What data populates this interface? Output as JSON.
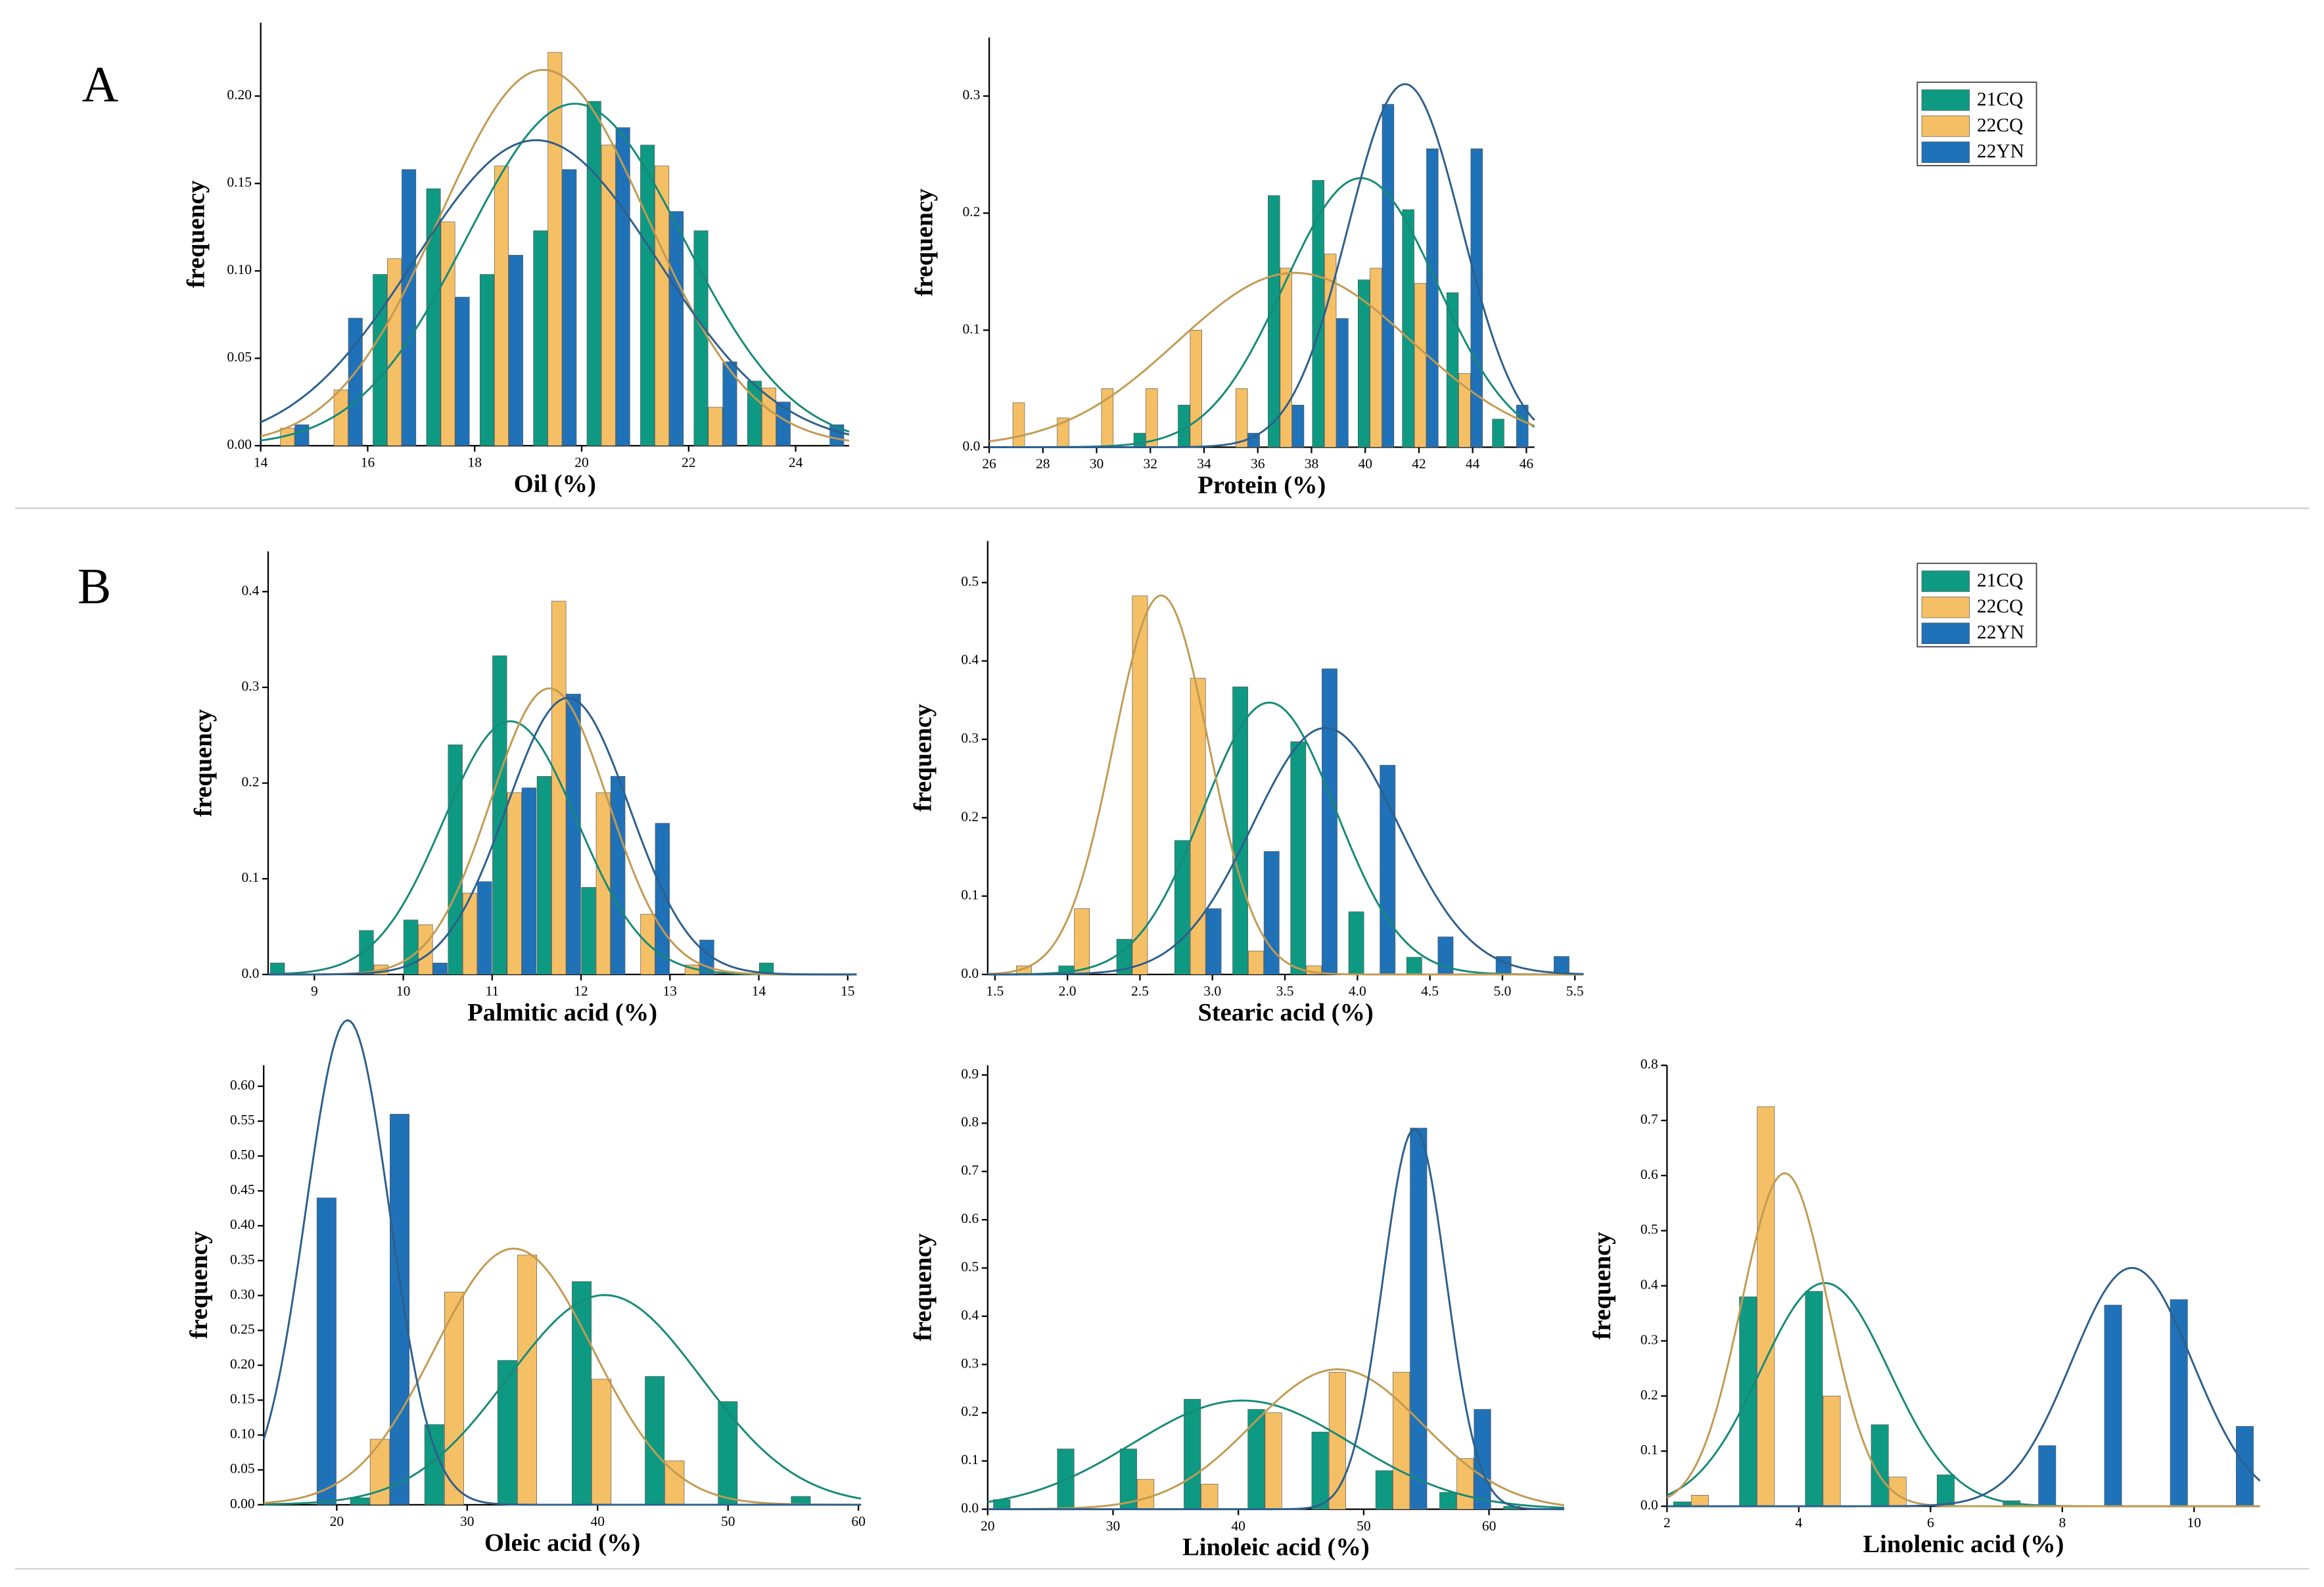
{
  "chart_data": [
    {
      "type": "bar",
      "panel_label": "A",
      "xlabel": "Oil  (%)",
      "ylabel": "frequency",
      "x": [
        14.5,
        15.5,
        16.5,
        17.5,
        18.5,
        19.5,
        20.5,
        21.5,
        22.5,
        23.5,
        24.5
      ],
      "series": [
        {
          "name": "21CQ",
          "color": "#0e9a82",
          "curve_color": "#168a78",
          "values": [
            null,
            null,
            0.098,
            0.147,
            0.098,
            0.123,
            0.197,
            0.172,
            0.123,
            0.037,
            null
          ]
        },
        {
          "name": "22CQ",
          "color": "#f5c065",
          "curve_color": "#c29a52",
          "values": [
            0.01,
            0.032,
            0.107,
            0.128,
            0.16,
            0.225,
            0.172,
            0.16,
            0.022,
            0.033,
            null
          ]
        },
        {
          "name": "22YN",
          "color": "#1f72b8",
          "curve_color": "#2d5f8c",
          "values": [
            0.012,
            0.073,
            0.158,
            0.085,
            0.109,
            0.158,
            0.182,
            0.134,
            0.048,
            0.025,
            0.012
          ]
        }
      ],
      "xlim": [
        14,
        25
      ],
      "xticks": [
        14,
        16,
        18,
        20,
        22,
        24
      ],
      "ylim": [
        0,
        0.242
      ],
      "yticks": [
        {
          "value": 0,
          "label": "0.00"
        },
        0.05,
        {
          "value": 0.1,
          "label": "0.10"
        },
        0.15,
        {
          "value": 0.2,
          "label": "0.20"
        }
      ]
    },
    {
      "type": "bar",
      "xlabel": "Protein (%)",
      "ylabel": "frequency",
      "legend": "right",
      "x": [
        27.1,
        28.75,
        30.4,
        32.05,
        33.7,
        35.4,
        37.05,
        38.7,
        40.4,
        42.05,
        43.7,
        45.4
      ],
      "series": [
        {
          "name": "21CQ",
          "color": "#0e9a82",
          "curve_color": "#168a78",
          "values": [
            null,
            null,
            null,
            0.012,
            0.036,
            null,
            0.215,
            0.228,
            0.143,
            0.203,
            0.132,
            0.024
          ]
        },
        {
          "name": "22CQ",
          "color": "#f5c065",
          "curve_color": "#c29a52",
          "values": [
            0.038,
            0.025,
            0.05,
            0.05,
            0.1,
            0.05,
            0.153,
            0.165,
            0.153,
            0.14,
            0.063,
            null
          ]
        },
        {
          "name": "22YN",
          "color": "#1f72b8",
          "curve_color": "#2d5f8c",
          "values": [
            null,
            null,
            null,
            null,
            null,
            0.012,
            0.036,
            0.11,
            0.293,
            0.255,
            0.255,
            0.036
          ]
        }
      ],
      "xlim": [
        26,
        46.3
      ],
      "xticks": [
        26,
        28,
        30,
        32,
        34,
        36,
        38,
        40,
        42,
        44,
        46
      ],
      "ylim": [
        0,
        0.35
      ],
      "yticks": [
        {
          "value": 0,
          "label": "0.0"
        },
        0.1,
        0.2,
        0.3
      ]
    },
    {
      "type": "bar",
      "panel_label": "B",
      "xlabel": "Palmitic acid (%)",
      "ylabel": "frequency",
      "x": [
        8.75,
        9.75,
        10.25,
        10.75,
        11.25,
        11.75,
        12.25,
        12.75,
        13.25,
        14.25
      ],
      "series": [
        {
          "name": "21CQ",
          "color": "#0e9a82",
          "curve_color": "#168a78",
          "values": [
            0.012,
            0.046,
            0.057,
            0.24,
            0.333,
            0.207,
            0.091,
            null,
            null,
            0.012
          ]
        },
        {
          "name": "22CQ",
          "color": "#f5c065",
          "curve_color": "#c29a52",
          "values": [
            null,
            0.01,
            0.052,
            0.085,
            0.19,
            0.39,
            0.19,
            0.063,
            0.01,
            null
          ]
        },
        {
          "name": "22YN",
          "color": "#1f72b8",
          "curve_color": "#2d5f8c",
          "values": [
            null,
            null,
            0.012,
            0.097,
            0.195,
            0.293,
            0.207,
            0.158,
            0.036,
            null
          ]
        }
      ],
      "xlim": [
        8.48,
        15.1
      ],
      "xticks": [
        9,
        10,
        11,
        12,
        13,
        14,
        15
      ],
      "ylim": [
        0,
        0.442
      ],
      "yticks": [
        {
          "value": 0,
          "label": "0.0"
        },
        0.1,
        0.2,
        0.3,
        0.4
      ]
    },
    {
      "type": "bar",
      "xlabel": "Stearic acid (%)",
      "ylabel": "frequency",
      "legend": "right",
      "x": [
        1.7,
        2.1,
        2.5,
        2.9,
        3.3,
        3.7,
        4.1,
        4.5,
        4.9,
        5.3
      ],
      "series": [
        {
          "name": "21CQ",
          "color": "#0e9a82",
          "curve_color": "#168a78",
          "values": [
            null,
            0.011,
            0.045,
            0.171,
            0.367,
            0.297,
            0.08,
            0.022,
            null,
            null
          ]
        },
        {
          "name": "22CQ",
          "color": "#f5c065",
          "curve_color": "#c29a52",
          "values": [
            0.011,
            0.084,
            0.483,
            0.378,
            0.03,
            0.011,
            null,
            null,
            null,
            null
          ]
        },
        {
          "name": "22YN",
          "color": "#1f72b8",
          "curve_color": "#2d5f8c",
          "values": [
            null,
            null,
            null,
            0.084,
            0.157,
            0.39,
            0.267,
            0.048,
            0.023,
            0.023
          ]
        }
      ],
      "xlim": [
        1.45,
        5.56
      ],
      "xticks": [
        1.5,
        {
          "value": 2,
          "label": "2.0"
        },
        2.5,
        {
          "value": 3,
          "label": "3.0"
        },
        3.5,
        {
          "value": 4,
          "label": "4.0"
        },
        4.5,
        {
          "value": 5,
          "label": "5.0"
        },
        5.5
      ],
      "ylim": [
        0,
        0.553
      ],
      "yticks": [
        {
          "value": 0,
          "label": "0.0"
        },
        0.1,
        0.2,
        0.3,
        0.4,
        0.5
      ]
    },
    {
      "type": "bar",
      "xlabel": "Oleic acid (%)",
      "ylabel": "frequency",
      "x": [
        17.7,
        23.3,
        29.0,
        34.6,
        40.3,
        45.9,
        51.5,
        57.1
      ],
      "series": [
        {
          "name": "21CQ",
          "color": "#0e9a82",
          "curve_color": "#168a78",
          "values": [
            null,
            0.01,
            0.115,
            0.207,
            0.32,
            0.184,
            0.148,
            0.012
          ]
        },
        {
          "name": "22CQ",
          "color": "#f5c065",
          "curve_color": "#c29a52",
          "values": [
            null,
            0.094,
            0.305,
            0.358,
            0.18,
            0.063,
            null,
            null
          ]
        },
        {
          "name": "22YN",
          "color": "#1f72b8",
          "curve_color": "#2d5f8c",
          "values": [
            0.44,
            0.56,
            null,
            null,
            null,
            null,
            null,
            null
          ]
        }
      ],
      "xlim": [
        14.4,
        60.2
      ],
      "xticks": [
        20,
        30,
        40,
        50,
        60
      ],
      "ylim": [
        0,
        0.63
      ],
      "yticks": [
        {
          "value": 0,
          "label": "0.00"
        },
        0.05,
        {
          "value": 0.1,
          "label": "0.10"
        },
        0.15,
        {
          "value": 0.2,
          "label": "0.20"
        },
        0.25,
        {
          "value": 0.3,
          "label": "0.30"
        },
        0.35,
        {
          "value": 0.4,
          "label": "0.40"
        },
        0.45,
        {
          "value": 0.5,
          "label": "0.50"
        },
        0.55,
        {
          "value": 0.6,
          "label": "0.60"
        }
      ]
    },
    {
      "type": "bar",
      "xlabel": "Linoleic acid (%)",
      "ylabel": "frequency",
      "x": [
        22.5,
        27.6,
        32.6,
        37.7,
        42.8,
        47.9,
        53.0,
        58.1,
        63.2
      ],
      "series": [
        {
          "name": "21CQ",
          "color": "#0e9a82",
          "curve_color": "#168a78",
          "values": [
            0.02,
            0.125,
            0.125,
            0.228,
            0.207,
            0.16,
            0.08,
            0.035,
            0.006
          ]
        },
        {
          "name": "22CQ",
          "color": "#f5c065",
          "curve_color": "#c29a52",
          "values": [
            null,
            null,
            0.062,
            0.052,
            0.2,
            0.284,
            0.284,
            0.105,
            null
          ]
        },
        {
          "name": "22YN",
          "color": "#1f72b8",
          "curve_color": "#2d5f8c",
          "values": [
            null,
            null,
            null,
            null,
            null,
            null,
            0.79,
            0.207,
            null
          ]
        }
      ],
      "xlim": [
        20,
        66
      ],
      "xticks": [
        20,
        30,
        40,
        50,
        60
      ],
      "ylim": [
        0,
        0.92
      ],
      "yticks": [
        {
          "value": 0,
          "label": "0.0"
        },
        0.1,
        0.2,
        0.3,
        0.4,
        0.5,
        0.6,
        0.7,
        0.8,
        0.9
      ]
    },
    {
      "type": "bar",
      "xlabel": "Linolenic acid (%)",
      "ylabel": "frequency",
      "x": [
        2.5,
        3.5,
        4.5,
        5.5,
        6.5,
        7.5,
        8.5,
        9.5,
        10.5
      ],
      "series": [
        {
          "name": "21CQ",
          "color": "#0e9a82",
          "curve_color": "#168a78",
          "values": [
            0.008,
            0.38,
            0.39,
            0.148,
            0.057,
            0.01,
            null,
            null,
            null
          ]
        },
        {
          "name": "22CQ",
          "color": "#f5c065",
          "curve_color": "#c29a52",
          "values": [
            0.02,
            0.725,
            0.2,
            0.053,
            null,
            null,
            null,
            null,
            null
          ]
        },
        {
          "name": "22YN",
          "color": "#1f72b8",
          "curve_color": "#2d5f8c",
          "values": [
            null,
            null,
            null,
            null,
            null,
            0.11,
            0.365,
            0.375,
            0.145
          ]
        }
      ],
      "xlim": [
        2,
        11
      ],
      "xticks": [
        2,
        4,
        6,
        8,
        10
      ],
      "ylim": [
        0,
        0.8
      ],
      "yticks": [
        {
          "value": 0,
          "label": "0.0"
        },
        0.1,
        0.2,
        0.3,
        0.4,
        0.5,
        0.6,
        0.7,
        0.8
      ]
    }
  ]
}
